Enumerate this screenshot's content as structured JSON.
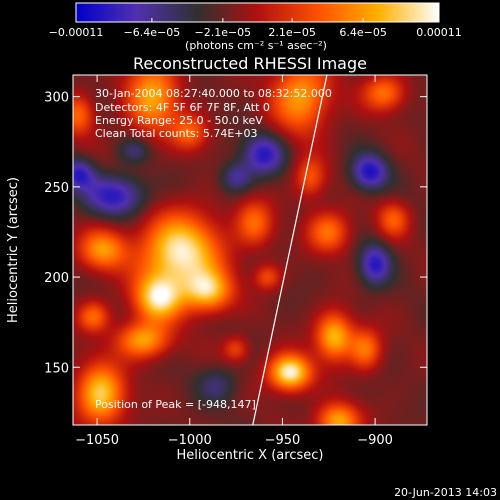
{
  "chart_data": {
    "type": "heatmap",
    "title": "Reconstructed RHESSI Image",
    "xlabel": "Heliocentric X (arcsec)",
    "ylabel": "Heliocentric Y (arcsec)",
    "xlim": [
      -1063,
      -872
    ],
    "ylim": [
      118,
      312
    ],
    "xticks": [
      -1050,
      -1000,
      -950,
      -900
    ],
    "yticks": [
      150,
      200,
      250,
      300
    ],
    "xtick_labels": [
      "−1050",
      "−1000",
      "−950",
      "−900"
    ],
    "ytick_labels": [
      "150",
      "200",
      "250",
      "300"
    ],
    "colorbar": {
      "range": [
        -0.00011,
        0.00011
      ],
      "tick_values": [
        -0.00011,
        -6.4e-05,
        -2.1e-05,
        2.1e-05,
        6.4e-05,
        0.00011
      ],
      "tick_labels": [
        "−0.00011",
        "−6.4e−05",
        "−2.1e−05",
        "2.1e−05",
        "6.4e−05",
        "0.00011"
      ],
      "units": "(photons cm⁻² s⁻¹ asec⁻²)",
      "colors": [
        "#0000c8",
        "#5030b0",
        "#303030",
        "#b01010",
        "#ff5000",
        "#ffb000",
        "#ffffff"
      ]
    },
    "annotations": [
      "30-Jan-2004 08:27:40.000 to 08:32:52.000",
      "Detectors: 4F 5F 6F 7F 8F, Att 0",
      "Energy Range: 25.0 - 50.0 keV",
      "Clean     Total counts: 5.74E+03"
    ],
    "peak_label": "Position of Peak = [-948,147]",
    "peak": {
      "x": -948,
      "y": 147
    },
    "limb_line": [
      {
        "x": -966,
        "y": 118
      },
      {
        "x": -926,
        "y": 312
      }
    ],
    "blobs": [
      {
        "x": -1005,
        "y": 213,
        "sx": 15,
        "sy": 15,
        "a": 1.0
      },
      {
        "x": -1017,
        "y": 188,
        "sx": 9,
        "sy": 9,
        "a": 0.85
      },
      {
        "x": -990,
        "y": 192,
        "sx": 9,
        "sy": 8,
        "a": 0.75
      },
      {
        "x": -1025,
        "y": 165,
        "sx": 10,
        "sy": 7,
        "a": 0.7
      },
      {
        "x": -1047,
        "y": 215,
        "sx": 9,
        "sy": 8,
        "a": 0.65
      },
      {
        "x": -1048,
        "y": 135,
        "sx": 9,
        "sy": 12,
        "a": 0.85
      },
      {
        "x": -1052,
        "y": 178,
        "sx": 6,
        "sy": 6,
        "a": 0.5
      },
      {
        "x": -1020,
        "y": 300,
        "sx": 10,
        "sy": 14,
        "a": 0.7
      },
      {
        "x": -1000,
        "y": 280,
        "sx": 7,
        "sy": 7,
        "a": 0.45
      },
      {
        "x": -965,
        "y": 230,
        "sx": 7,
        "sy": 9,
        "a": 0.5
      },
      {
        "x": -946,
        "y": 147,
        "sx": 8,
        "sy": 7,
        "a": 1.05
      },
      {
        "x": -922,
        "y": 167,
        "sx": 7,
        "sy": 9,
        "a": 0.8
      },
      {
        "x": -920,
        "y": 120,
        "sx": 8,
        "sy": 7,
        "a": 0.75
      },
      {
        "x": -905,
        "y": 160,
        "sx": 6,
        "sy": 8,
        "a": 0.55
      },
      {
        "x": -925,
        "y": 225,
        "sx": 8,
        "sy": 8,
        "a": 0.55
      },
      {
        "x": -935,
        "y": 255,
        "sx": 6,
        "sy": 8,
        "a": 0.45
      },
      {
        "x": -940,
        "y": 300,
        "sx": 11,
        "sy": 14,
        "a": 0.7
      },
      {
        "x": -895,
        "y": 302,
        "sx": 8,
        "sy": 7,
        "a": 0.55
      },
      {
        "x": -890,
        "y": 232,
        "sx": 6,
        "sy": 7,
        "a": 0.45
      },
      {
        "x": -958,
        "y": 200,
        "sx": 5,
        "sy": 5,
        "a": 0.4
      },
      {
        "x": -1060,
        "y": 290,
        "sx": 6,
        "sy": 8,
        "a": 0.5
      },
      {
        "x": -975,
        "y": 160,
        "sx": 5,
        "sy": 5,
        "a": 0.4
      },
      {
        "x": -1040,
        "y": 245,
        "sx": 12,
        "sy": 8,
        "a": -0.6
      },
      {
        "x": -960,
        "y": 268,
        "sx": 8,
        "sy": 8,
        "a": -0.6
      },
      {
        "x": -903,
        "y": 258,
        "sx": 7,
        "sy": 7,
        "a": -0.65
      },
      {
        "x": -900,
        "y": 207,
        "sx": 6,
        "sy": 8,
        "a": -0.6
      },
      {
        "x": -1060,
        "y": 257,
        "sx": 6,
        "sy": 6,
        "a": -0.55
      },
      {
        "x": -975,
        "y": 255,
        "sx": 6,
        "sy": 6,
        "a": -0.4
      },
      {
        "x": -985,
        "y": 140,
        "sx": 8,
        "sy": 7,
        "a": -0.3
      },
      {
        "x": -1030,
        "y": 270,
        "sx": 6,
        "sy": 5,
        "a": -0.3
      }
    ]
  },
  "footer": {
    "date": "20-Jun-2013 14:03"
  }
}
